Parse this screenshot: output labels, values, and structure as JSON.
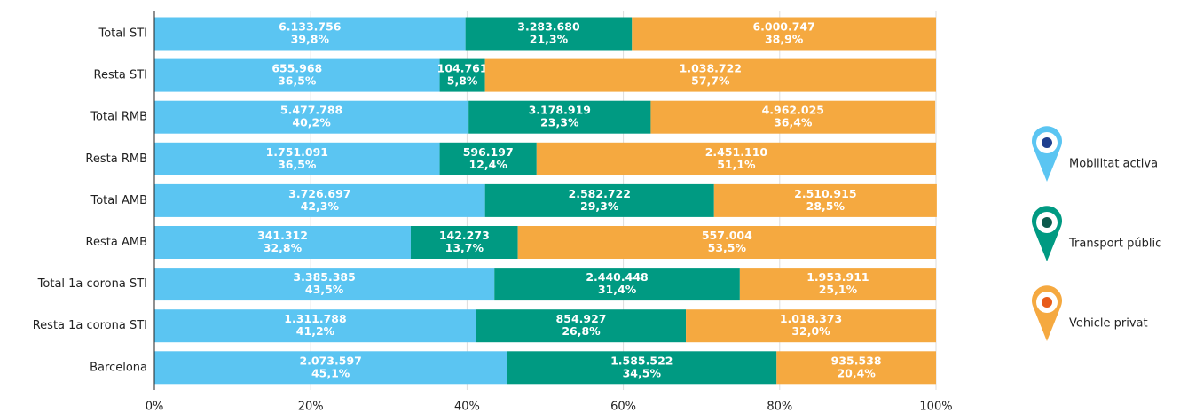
{
  "chart_data": {
    "type": "stacked_barh",
    "categories": [
      "Total STI",
      "Resta STI",
      "Total RMB",
      "Resta RMB",
      "Total AMB",
      "Resta AMB",
      "Total 1a corona STI",
      "Resta 1a corona STI",
      "Barcelona"
    ],
    "series": [
      {
        "name": "Mobilitat activa",
        "color": "#5bc5f2",
        "values": [
          39.8,
          36.5,
          40.2,
          36.5,
          42.3,
          32.8,
          43.5,
          41.2,
          45.1
        ],
        "value_labels": [
          "39,8%",
          "36,5%",
          "40,2%",
          "36,5%",
          "42,3%",
          "32,8%",
          "43,5%",
          "41,2%",
          "45,1%"
        ],
        "counts": [
          6133756,
          655968,
          5477788,
          1751091,
          3726697,
          341312,
          3385385,
          1311788,
          2073597
        ],
        "count_labels": [
          "6.133.756",
          "655.968",
          "5.477.788",
          "1.751.091",
          "3.726.697",
          "341.312",
          "3.385.385",
          "1.311.788",
          "2.073.597"
        ]
      },
      {
        "name": "Transport públic",
        "color": "#009a82",
        "values": [
          21.3,
          5.8,
          23.3,
          12.4,
          29.3,
          13.7,
          31.4,
          26.8,
          34.5
        ],
        "value_labels": [
          "21,3%",
          "5,8%",
          "23,3%",
          "12,4%",
          "29,3%",
          "13,7%",
          "31,4%",
          "26,8%",
          "34,5%"
        ],
        "counts": [
          3283680,
          104761,
          3178919,
          596197,
          2582722,
          142273,
          2440448,
          854927,
          1585522
        ],
        "count_labels": [
          "3.283.680",
          "104.761",
          "3.178.919",
          "596.197",
          "2.582.722",
          "142.273",
          "2.440.448",
          "854.927",
          "1.585.522"
        ]
      },
      {
        "name": "Vehicle privat",
        "color": "#f5a940",
        "values": [
          38.9,
          57.7,
          36.4,
          51.1,
          28.5,
          53.5,
          25.1,
          32.0,
          20.4
        ],
        "value_labels": [
          "38,9%",
          "57,7%",
          "36,4%",
          "51,1%",
          "28,5%",
          "53,5%",
          "25,1%",
          "32,0%",
          "20,4%"
        ],
        "counts": [
          6000747,
          1038722,
          4962025,
          2451110,
          2510915,
          557004,
          1953911,
          1018373,
          935538
        ],
        "count_labels": [
          "6.000.747",
          "1.038.722",
          "4.962.025",
          "2.451.110",
          "2.510.915",
          "557.004",
          "1.953.911",
          "1.018.373",
          "935.538"
        ]
      }
    ],
    "xlim": [
      0,
      100
    ],
    "xticks": [
      {
        "value": 0,
        "label": "0%"
      },
      {
        "value": 20,
        "label": "20%"
      },
      {
        "value": 40,
        "label": "40%"
      },
      {
        "value": 60,
        "label": "60%"
      },
      {
        "value": 80,
        "label": "80%"
      },
      {
        "value": 100,
        "label": "100%"
      }
    ],
    "grid": true,
    "legend": "right"
  }
}
